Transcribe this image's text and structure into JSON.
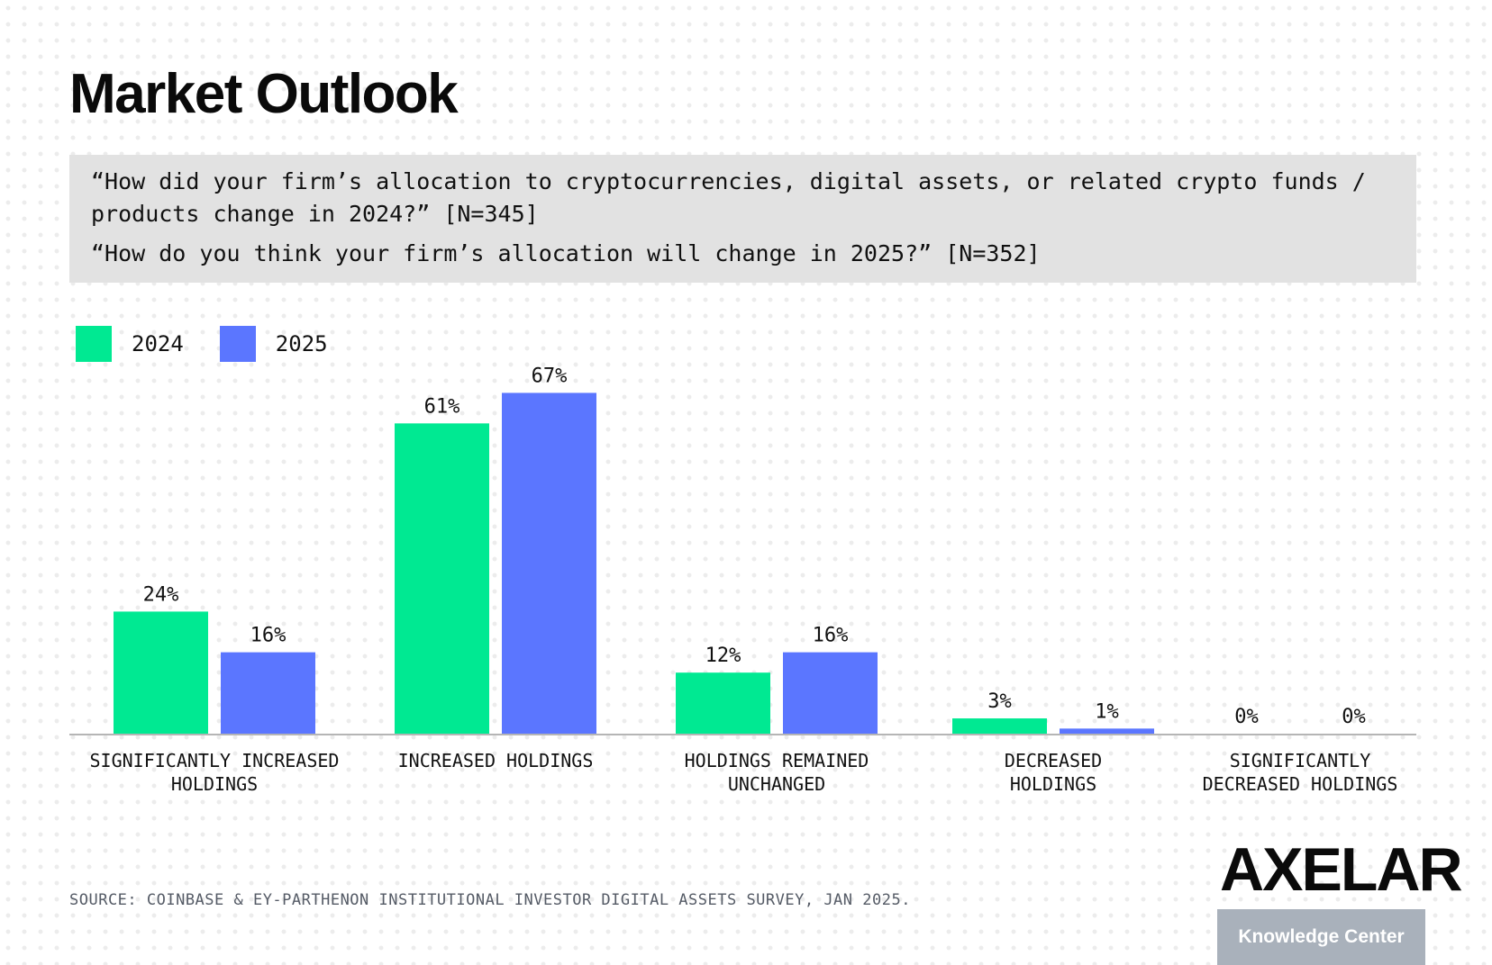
{
  "title": "Market Outlook",
  "questions": [
    "“How did your firm’s allocation to cryptocurrencies, digital assets, or related crypto funds / products change in 2024?” [N=345]",
    "“How do you think your firm’s allocation will change in 2025?” [N=352]"
  ],
  "source": "SOURCE: COINBASE & EY-PARTHENON INSTITUTIONAL INVESTOR DIGITAL ASSETS SURVEY, JAN 2025.",
  "logo": "AXELAR",
  "badge": "Knowledge Center",
  "colors": {
    "series_2024": "#00e992",
    "series_2025": "#5b76ff",
    "axis": "#b5b5b5"
  },
  "chart_data": {
    "type": "bar",
    "categories": [
      [
        "SIGNIFICANTLY INCREASED",
        "HOLDINGS"
      ],
      [
        "INCREASED HOLDINGS"
      ],
      [
        "HOLDINGS REMAINED",
        "UNCHANGED"
      ],
      [
        "DECREASED",
        "HOLDINGS"
      ],
      [
        "SIGNIFICANTLY",
        "DECREASED HOLDINGS"
      ]
    ],
    "series": [
      {
        "name": "2024",
        "values": [
          24,
          61,
          12,
          3,
          0
        ],
        "labels": [
          "24%",
          "61%",
          "12%",
          "3%",
          "0%"
        ]
      },
      {
        "name": "2025",
        "values": [
          16,
          67,
          16,
          1,
          0
        ],
        "labels": [
          "16%",
          "67%",
          "16%",
          "1%",
          "0%"
        ]
      }
    ],
    "unit": "%",
    "ylim": [
      0,
      100
    ],
    "grid": false,
    "legend": "top-left"
  }
}
